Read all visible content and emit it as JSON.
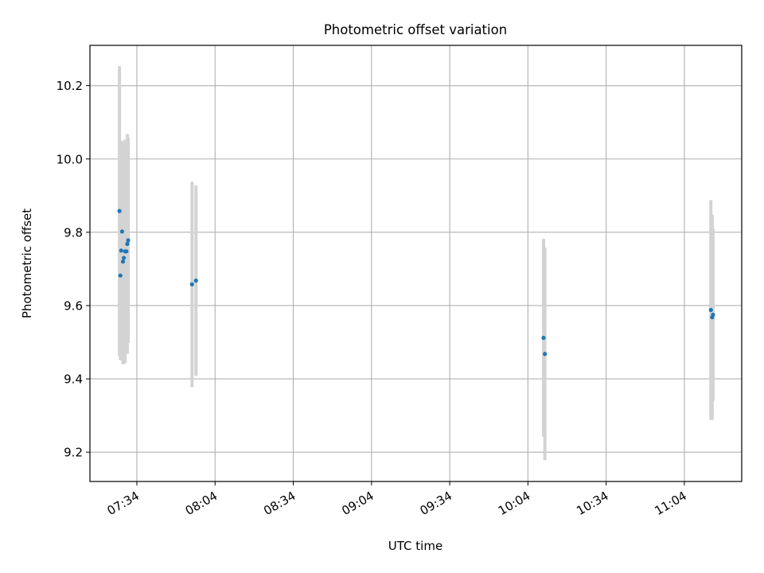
{
  "chart_data": {
    "type": "scatter",
    "title": "Photometric offset variation",
    "xlabel": "UTC time",
    "ylabel": "Photometric offset",
    "x_tick_labels": [
      "07:34",
      "08:04",
      "08:34",
      "09:04",
      "09:34",
      "10:04",
      "10:34",
      "11:04"
    ],
    "y_tick_labels": [
      "9.2",
      "9.4",
      "9.6",
      "9.8",
      "10.0",
      "10.2"
    ],
    "xlim": [
      "07:16",
      "11:26"
    ],
    "ylim": [
      9.12,
      10.31
    ],
    "grid": true,
    "marker_color": "#1f77b4",
    "errorbar_color": "#d3d3d3",
    "points": [
      {
        "x": "07:27:20",
        "y": 9.858,
        "yerr": 0.395
      },
      {
        "x": "07:27:40",
        "y": 9.682,
        "yerr": 0.23
      },
      {
        "x": "07:28:00",
        "y": 9.75,
        "yerr": 0.3
      },
      {
        "x": "07:28:20",
        "y": 9.802,
        "yerr": 0.245
      },
      {
        "x": "07:28:40",
        "y": 9.72,
        "yerr": 0.28
      },
      {
        "x": "07:29:00",
        "y": 9.73,
        "yerr": 0.29
      },
      {
        "x": "07:29:30",
        "y": 9.748,
        "yerr": 0.305
      },
      {
        "x": "07:30:00",
        "y": 9.748,
        "yerr": 0.24
      },
      {
        "x": "07:30:20",
        "y": 9.768,
        "yerr": 0.3
      },
      {
        "x": "07:30:40",
        "y": 9.778,
        "yerr": 0.28
      },
      {
        "x": "07:55:10",
        "y": 9.658,
        "yerr": 0.28
      },
      {
        "x": "07:56:40",
        "y": 9.668,
        "yerr": 0.26
      },
      {
        "x": "10:10:00",
        "y": 9.512,
        "yerr": 0.27
      },
      {
        "x": "10:10:30",
        "y": 9.468,
        "yerr": 0.29
      },
      {
        "x": "11:14:10",
        "y": 9.588,
        "yerr": 0.3
      },
      {
        "x": "11:14:40",
        "y": 9.568,
        "yerr": 0.28
      },
      {
        "x": "11:15:00",
        "y": 9.575,
        "yerr": 0.235
      }
    ]
  }
}
